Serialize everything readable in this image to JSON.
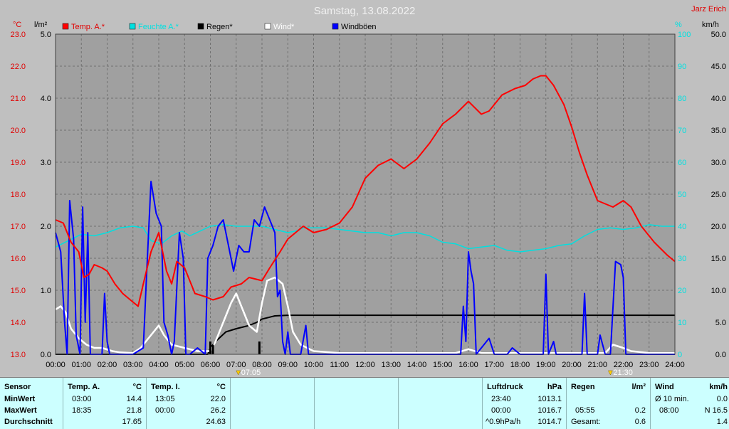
{
  "title": "Samstag, 13.08.2022",
  "station": "Jarz Erich",
  "axis_units": {
    "temp": "°C",
    "rain": "l/m²",
    "humidity": "%",
    "wind": "km/h"
  },
  "legend": [
    {
      "label": "Temp. A.*",
      "color": "#ff0000"
    },
    {
      "label": "Feuchte A.*",
      "color": "#00e0e0"
    },
    {
      "label": "Regen*",
      "color": "#000000"
    },
    {
      "label": "Wind*",
      "color": "#ffffff"
    },
    {
      "label": "Windböen",
      "color": "#0000ff"
    }
  ],
  "sun_markers": [
    {
      "label": "07:05"
    },
    {
      "label": "21:30"
    }
  ],
  "chart_data": {
    "type": "line",
    "title": "Samstag, 13.08.2022",
    "x_ticks": [
      "00:00",
      "01:00",
      "02:00",
      "03:00",
      "04:00",
      "05:00",
      "06:00",
      "07:00",
      "08:00",
      "09:00",
      "10:00",
      "11:00",
      "12:00",
      "13:00",
      "14:00",
      "15:00",
      "16:00",
      "17:00",
      "18:00",
      "19:00",
      "20:00",
      "21:00",
      "22:00",
      "23:00",
      "24:00"
    ],
    "xlim": [
      0,
      24
    ],
    "axes": {
      "temp": {
        "label": "°C",
        "ylim": [
          13.0,
          23.0
        ],
        "ticks": [
          "13.0",
          "14.0",
          "15.0",
          "16.0",
          "17.0",
          "18.0",
          "19.0",
          "20.0",
          "21.0",
          "22.0",
          "23.0"
        ]
      },
      "rain": {
        "label": "l/m²",
        "ylim": [
          0.0,
          5.0
        ],
        "ticks": [
          "0.0",
          "1.0",
          "2.0",
          "3.0",
          "4.0",
          "5.0"
        ]
      },
      "humidity": {
        "label": "%",
        "ylim": [
          0,
          100
        ],
        "ticks": [
          "0",
          "10",
          "20",
          "30",
          "40",
          "50",
          "60",
          "70",
          "80",
          "90",
          "100"
        ]
      },
      "wind": {
        "label": "km/h",
        "ylim": [
          0,
          50
        ],
        "ticks": [
          "0.0",
          "5.0",
          "10.0",
          "15.0",
          "20.0",
          "25.0",
          "30.0",
          "35.0",
          "40.0",
          "45.0",
          "50.0"
        ]
      }
    },
    "grid": true,
    "series": [
      {
        "name": "Temp. A.*",
        "axis": "temp",
        "color": "#ff0000",
        "points": [
          [
            0,
            17.2
          ],
          [
            0.3,
            17.1
          ],
          [
            0.6,
            16.5
          ],
          [
            0.9,
            16.2
          ],
          [
            1.1,
            15.4
          ],
          [
            1.3,
            15.5
          ],
          [
            1.5,
            15.8
          ],
          [
            1.8,
            15.7
          ],
          [
            2.0,
            15.6
          ],
          [
            2.3,
            15.2
          ],
          [
            2.6,
            14.9
          ],
          [
            2.9,
            14.7
          ],
          [
            3.2,
            14.5
          ],
          [
            3.4,
            15.2
          ],
          [
            3.7,
            16.2
          ],
          [
            4.0,
            16.8
          ],
          [
            4.3,
            15.6
          ],
          [
            4.5,
            15.2
          ],
          [
            4.7,
            15.9
          ],
          [
            5.0,
            15.7
          ],
          [
            5.4,
            14.9
          ],
          [
            5.8,
            14.8
          ],
          [
            6.1,
            14.7
          ],
          [
            6.5,
            14.8
          ],
          [
            6.8,
            15.1
          ],
          [
            7.2,
            15.2
          ],
          [
            7.5,
            15.4
          ],
          [
            8.0,
            15.3
          ],
          [
            8.3,
            15.7
          ],
          [
            8.7,
            16.2
          ],
          [
            9.0,
            16.6
          ],
          [
            9.3,
            16.8
          ],
          [
            9.6,
            17.0
          ],
          [
            10.0,
            16.8
          ],
          [
            10.5,
            16.9
          ],
          [
            11.0,
            17.1
          ],
          [
            11.5,
            17.6
          ],
          [
            12.0,
            18.5
          ],
          [
            12.5,
            18.9
          ],
          [
            13.0,
            19.1
          ],
          [
            13.5,
            18.8
          ],
          [
            14.0,
            19.1
          ],
          [
            14.5,
            19.6
          ],
          [
            15.0,
            20.2
          ],
          [
            15.5,
            20.5
          ],
          [
            16.0,
            20.9
          ],
          [
            16.5,
            20.5
          ],
          [
            16.8,
            20.6
          ],
          [
            17.0,
            20.8
          ],
          [
            17.3,
            21.1
          ],
          [
            17.8,
            21.3
          ],
          [
            18.2,
            21.4
          ],
          [
            18.5,
            21.6
          ],
          [
            18.8,
            21.7
          ],
          [
            19.0,
            21.7
          ],
          [
            19.3,
            21.4
          ],
          [
            19.7,
            20.8
          ],
          [
            20.0,
            20.1
          ],
          [
            20.3,
            19.3
          ],
          [
            20.6,
            18.6
          ],
          [
            21.0,
            17.8
          ],
          [
            21.3,
            17.7
          ],
          [
            21.6,
            17.6
          ],
          [
            22.0,
            17.8
          ],
          [
            22.3,
            17.6
          ],
          [
            22.7,
            17.0
          ],
          [
            23.2,
            16.5
          ],
          [
            23.7,
            16.1
          ],
          [
            24.0,
            15.9
          ]
        ]
      },
      {
        "name": "Feuchte A.*",
        "axis": "humidity",
        "color": "#00e0e0",
        "points": [
          [
            0,
            33.5
          ],
          [
            0.5,
            35.5
          ],
          [
            1.0,
            37.5
          ],
          [
            1.5,
            37.0
          ],
          [
            2.0,
            38.0
          ],
          [
            2.5,
            39.5
          ],
          [
            3.0,
            40.0
          ],
          [
            3.4,
            39.5
          ],
          [
            3.7,
            35.5
          ],
          [
            4.1,
            34.5
          ],
          [
            4.5,
            37.0
          ],
          [
            4.9,
            38.5
          ],
          [
            5.2,
            37.0
          ],
          [
            5.6,
            38.5
          ],
          [
            6.0,
            40.0
          ],
          [
            6.5,
            40.5
          ],
          [
            7.0,
            40.0
          ],
          [
            8.0,
            40.0
          ],
          [
            8.5,
            39.0
          ],
          [
            9.0,
            38.0
          ],
          [
            9.3,
            38.5
          ],
          [
            9.6,
            39.5
          ],
          [
            10.0,
            39.5
          ],
          [
            10.5,
            39.5
          ],
          [
            11.0,
            39.0
          ],
          [
            11.5,
            38.5
          ],
          [
            12.0,
            38.0
          ],
          [
            12.5,
            38.0
          ],
          [
            13.0,
            37.0
          ],
          [
            13.5,
            38.0
          ],
          [
            14.0,
            38.0
          ],
          [
            14.5,
            37.0
          ],
          [
            15.0,
            35.0
          ],
          [
            15.5,
            34.5
          ],
          [
            16.0,
            33.0
          ],
          [
            16.5,
            33.5
          ],
          [
            17.0,
            34.0
          ],
          [
            17.5,
            32.5
          ],
          [
            18.0,
            32.0
          ],
          [
            18.5,
            32.5
          ],
          [
            19.0,
            33.0
          ],
          [
            19.5,
            34.0
          ],
          [
            20.0,
            34.5
          ],
          [
            20.5,
            37.0
          ],
          [
            21.0,
            39.0
          ],
          [
            21.5,
            39.5
          ],
          [
            22.0,
            39.0
          ],
          [
            22.5,
            39.5
          ],
          [
            23.0,
            40.5
          ],
          [
            23.5,
            40.0
          ],
          [
            24.0,
            40.0
          ]
        ]
      },
      {
        "name": "Regen*",
        "axis": "rain",
        "color": "#000000",
        "points": [
          [
            0,
            0
          ],
          [
            5.9,
            0
          ],
          [
            6.0,
            0.1
          ],
          [
            6.2,
            0.2
          ],
          [
            6.6,
            0.35
          ],
          [
            7.0,
            0.4
          ],
          [
            7.5,
            0.45
          ],
          [
            7.8,
            0.5
          ],
          [
            8.0,
            0.55
          ],
          [
            8.5,
            0.6
          ],
          [
            9.0,
            0.61
          ],
          [
            24.0,
            0.61
          ]
        ]
      },
      {
        "name": "Wind*",
        "axis": "wind",
        "color": "#ffffff",
        "points": [
          [
            0,
            7.0
          ],
          [
            0.2,
            7.5
          ],
          [
            0.4,
            6.5
          ],
          [
            0.6,
            4.0
          ],
          [
            0.9,
            2.5
          ],
          [
            1.2,
            1.5
          ],
          [
            1.5,
            1.0
          ],
          [
            1.8,
            1.0
          ],
          [
            2.2,
            0.5
          ],
          [
            2.5,
            0.3
          ],
          [
            3.0,
            0.2
          ],
          [
            3.3,
            1.0
          ],
          [
            3.6,
            2.5
          ],
          [
            4.0,
            4.5
          ],
          [
            4.2,
            3.0
          ],
          [
            4.5,
            1.5
          ],
          [
            5.0,
            1.0
          ],
          [
            5.5,
            0.5
          ],
          [
            6.0,
            0.5
          ],
          [
            6.2,
            2.0
          ],
          [
            6.5,
            5.0
          ],
          [
            6.8,
            8.0
          ],
          [
            7.0,
            9.5
          ],
          [
            7.2,
            7.5
          ],
          [
            7.5,
            4.5
          ],
          [
            7.8,
            3.5
          ],
          [
            8.0,
            8.0
          ],
          [
            8.2,
            11.5
          ],
          [
            8.5,
            12.0
          ],
          [
            8.8,
            11.0
          ],
          [
            9.0,
            7.5
          ],
          [
            9.2,
            3.5
          ],
          [
            9.5,
            1.5
          ],
          [
            10.0,
            0.5
          ],
          [
            11.0,
            0.2
          ],
          [
            15.5,
            0.2
          ],
          [
            16.0,
            0.8
          ],
          [
            16.5,
            0.2
          ],
          [
            21.3,
            0.2
          ],
          [
            21.6,
            1.5
          ],
          [
            22.0,
            1.0
          ],
          [
            22.3,
            0.5
          ],
          [
            23.0,
            0.2
          ],
          [
            24.0,
            0.2
          ]
        ]
      },
      {
        "name": "Windböen",
        "axis": "wind",
        "color": "#0000ff",
        "points": [
          [
            0,
            19
          ],
          [
            0.2,
            16
          ],
          [
            0.35,
            5
          ],
          [
            0.45,
            0
          ],
          [
            0.55,
            24
          ],
          [
            0.7,
            18
          ],
          [
            0.8,
            3
          ],
          [
            0.95,
            0
          ],
          [
            1.05,
            23
          ],
          [
            1.15,
            5
          ],
          [
            1.25,
            19
          ],
          [
            1.35,
            0
          ],
          [
            1.5,
            0
          ],
          [
            1.8,
            0
          ],
          [
            1.9,
            9.5
          ],
          [
            2.0,
            2
          ],
          [
            2.1,
            0
          ],
          [
            3.0,
            0
          ],
          [
            3.4,
            1
          ],
          [
            3.5,
            10
          ],
          [
            3.7,
            27
          ],
          [
            3.9,
            22
          ],
          [
            4.1,
            20
          ],
          [
            4.2,
            5
          ],
          [
            4.35,
            3
          ],
          [
            4.5,
            0
          ],
          [
            4.6,
            2
          ],
          [
            4.8,
            19
          ],
          [
            4.95,
            15
          ],
          [
            5.05,
            0
          ],
          [
            5.2,
            0
          ],
          [
            5.5,
            1
          ],
          [
            5.8,
            0
          ],
          [
            5.9,
            15
          ],
          [
            6.1,
            17
          ],
          [
            6.3,
            20
          ],
          [
            6.5,
            21
          ],
          [
            6.7,
            17
          ],
          [
            6.9,
            13
          ],
          [
            7.1,
            17
          ],
          [
            7.3,
            16
          ],
          [
            7.5,
            16
          ],
          [
            7.7,
            21
          ],
          [
            7.9,
            20
          ],
          [
            8.1,
            23
          ],
          [
            8.3,
            21
          ],
          [
            8.5,
            19
          ],
          [
            8.6,
            9
          ],
          [
            8.7,
            10
          ],
          [
            8.8,
            2
          ],
          [
            8.9,
            0
          ],
          [
            9.0,
            3.5
          ],
          [
            9.1,
            0
          ],
          [
            9.5,
            0
          ],
          [
            9.7,
            4.5
          ],
          [
            9.8,
            0
          ],
          [
            15.7,
            0
          ],
          [
            15.8,
            7.5
          ],
          [
            15.9,
            2
          ],
          [
            16.0,
            16
          ],
          [
            16.1,
            13
          ],
          [
            16.2,
            11
          ],
          [
            16.3,
            0
          ],
          [
            16.8,
            2.5
          ],
          [
            17.0,
            0
          ],
          [
            17.5,
            0
          ],
          [
            17.7,
            1
          ],
          [
            18.0,
            0
          ],
          [
            18.9,
            0
          ],
          [
            19.0,
            12.5
          ],
          [
            19.1,
            0
          ],
          [
            19.3,
            2
          ],
          [
            19.4,
            0
          ],
          [
            20.4,
            0
          ],
          [
            20.5,
            9.5
          ],
          [
            20.6,
            0
          ],
          [
            21.0,
            0
          ],
          [
            21.1,
            3
          ],
          [
            21.3,
            0
          ],
          [
            21.5,
            0
          ],
          [
            21.7,
            14.5
          ],
          [
            21.9,
            14
          ],
          [
            22.0,
            12
          ],
          [
            22.1,
            0
          ],
          [
            24.0,
            0
          ]
        ]
      }
    ]
  },
  "stats": {
    "sensor": {
      "header": "Sensor",
      "rows": [
        "MinWert",
        "MaxWert",
        "Durchschnitt"
      ]
    },
    "temp_a": {
      "header": "Temp. A.",
      "unit": "°C",
      "min_time": "03:00",
      "min_val": "14.4",
      "max_time": "18:35",
      "max_val": "21.8",
      "avg": "17.65"
    },
    "temp_i": {
      "header": "Temp. I.",
      "unit": "°C",
      "min_time": "13:05",
      "min_val": "22.0",
      "max_time": "00:00",
      "max_val": "26.2",
      "avg": "24.63"
    },
    "luftdruck": {
      "header": "Luftdruck",
      "unit": "hPa",
      "min_time": "23:40",
      "min_val": "1013.1",
      "max_time": "00:00",
      "max_val": "1016.7",
      "avg_label": "^0.9hPa/h",
      "avg": "1014.7"
    },
    "regen": {
      "header": "Regen",
      "unit": "l/m²",
      "max_time": "05:55",
      "max_val": "0.2",
      "total_label": "Gesamt:",
      "total": "0.6"
    },
    "wind": {
      "header": "Wind",
      "unit": "km/h",
      "min_label": "Ø 10 min.",
      "min_val": "0.0",
      "max_time": "08:00",
      "max_val": "N 16.5",
      "avg": "1.4"
    }
  }
}
